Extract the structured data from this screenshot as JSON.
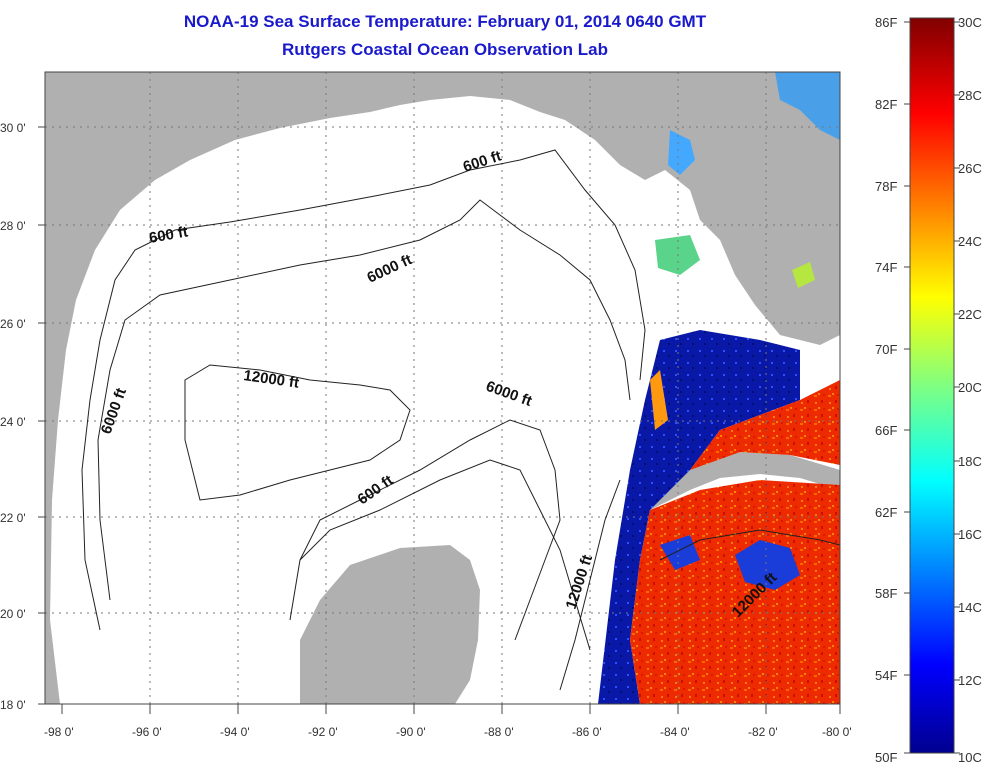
{
  "title_line1": "NOAA-19 Sea Surface Temperature:  February 01, 2014 0640 GMT",
  "title_line2": "Rutgers Coastal Ocean Observation Lab",
  "map": {
    "lon_labels": [
      "-98 0'",
      "-96 0'",
      "-94 0'",
      "-92 0'",
      "-90 0'",
      "-88 0'",
      "-86 0'",
      "-84 0'",
      "-82 0'",
      "-80 0'"
    ],
    "lat_labels": [
      "18 0'",
      "20 0'",
      "22 0'",
      "24 0'",
      "26 0'",
      "28 0'",
      "30 0'"
    ],
    "contour_labels": [
      "600 ft",
      "600 ft",
      "6000 ft",
      "12000 ft",
      "6000 ft",
      "6000 ft",
      "600 ft",
      "12000 ft",
      "12000 ft"
    ]
  },
  "colorbar": {
    "fahrenheit": [
      "86F",
      "82F",
      "78F",
      "74F",
      "70F",
      "66F",
      "62F",
      "58F",
      "54F",
      "50F"
    ],
    "celsius": [
      "30C",
      "28C",
      "26C",
      "24C",
      "22C",
      "20C",
      "18C",
      "16C",
      "14C",
      "12C",
      "10C"
    ]
  },
  "colors": {
    "title": "#1a1acc",
    "land": "#b0b0b0",
    "warm": "#ee2200",
    "cold": "#0a18a0"
  }
}
